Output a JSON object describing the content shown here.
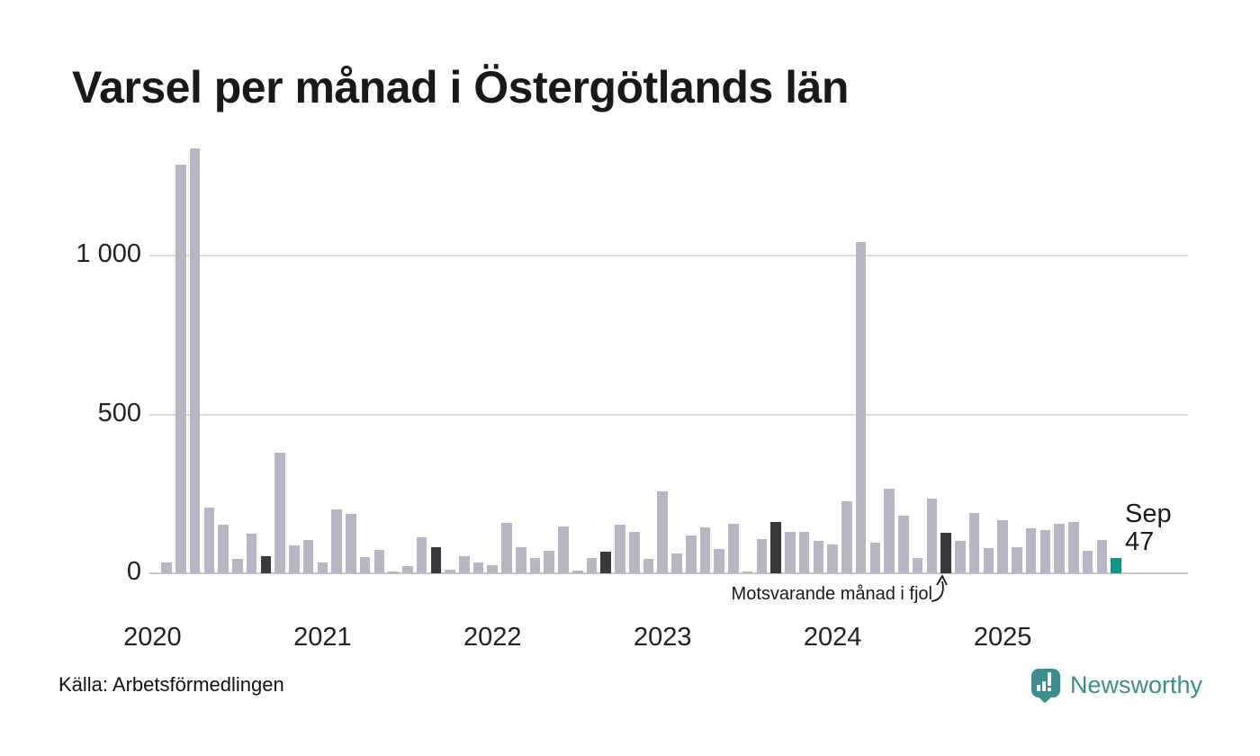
{
  "title": "Varsel per månad i Östergötlands län",
  "source": "Källa: Arbetsförmedlingen",
  "branding": {
    "logo_text": "Newsworthy"
  },
  "annotation": {
    "text": "Motsvarande månad i fjol"
  },
  "current_point_label": {
    "month": "Sep",
    "value": "47"
  },
  "colors": {
    "bar_default": "#b8b6c4",
    "bar_prior_year_month": "#3a383c",
    "bar_current": "#0f948a",
    "brand_teal": "#3c8d8b",
    "gridline": "#dcdce0",
    "axis_line": "#c6c6cc",
    "text": "#1a1a1a"
  },
  "y_axis": {
    "ticks": [
      {
        "value": 0,
        "label": "0"
      },
      {
        "value": 500,
        "label": "500"
      },
      {
        "value": 1000,
        "label": "1 000"
      }
    ]
  },
  "x_axis": {
    "year_labels": [
      "2020",
      "2021",
      "2022",
      "2023",
      "2024",
      "2025"
    ]
  },
  "chart_data": {
    "type": "bar",
    "title": "Varsel per månad i Östergötlands län",
    "xlabel": "",
    "ylabel": "",
    "ylim": [
      0,
      1350
    ],
    "grid": "horizontal",
    "legend": "none",
    "annotation_target": "2024-09",
    "points": [
      [
        "2020-02",
        34,
        "default"
      ],
      [
        "2020-03",
        1285,
        "default"
      ],
      [
        "2020-04",
        1334,
        "default"
      ],
      [
        "2020-05",
        207,
        "default"
      ],
      [
        "2020-06",
        153,
        "default"
      ],
      [
        "2020-07",
        46,
        "default"
      ],
      [
        "2020-08",
        125,
        "default"
      ],
      [
        "2020-09",
        55,
        "prior-year-month"
      ],
      [
        "2020-10",
        380,
        "default"
      ],
      [
        "2020-11",
        89,
        "default"
      ],
      [
        "2020-12",
        105,
        "default"
      ],
      [
        "2021-01",
        33,
        "default"
      ],
      [
        "2021-02",
        200,
        "default"
      ],
      [
        "2021-03",
        188,
        "default"
      ],
      [
        "2021-04",
        52,
        "default"
      ],
      [
        "2021-05",
        74,
        "default"
      ],
      [
        "2021-06",
        7,
        "default"
      ],
      [
        "2021-07",
        23,
        "default"
      ],
      [
        "2021-08",
        112,
        "default"
      ],
      [
        "2021-09",
        82,
        "prior-year-month"
      ],
      [
        "2021-10",
        11,
        "default"
      ],
      [
        "2021-11",
        54,
        "default"
      ],
      [
        "2021-12",
        33,
        "default"
      ],
      [
        "2022-01",
        25,
        "default"
      ],
      [
        "2022-02",
        157,
        "default"
      ],
      [
        "2022-03",
        82,
        "default"
      ],
      [
        "2022-04",
        48,
        "default"
      ],
      [
        "2022-05",
        71,
        "default"
      ],
      [
        "2022-06",
        148,
        "default"
      ],
      [
        "2022-07",
        9,
        "default"
      ],
      [
        "2022-08",
        49,
        "default"
      ],
      [
        "2022-09",
        68,
        "prior-year-month"
      ],
      [
        "2022-10",
        153,
        "default"
      ],
      [
        "2022-11",
        129,
        "default"
      ],
      [
        "2022-12",
        44,
        "default"
      ],
      [
        "2023-01",
        258,
        "default"
      ],
      [
        "2023-02",
        63,
        "default"
      ],
      [
        "2023-03",
        119,
        "default"
      ],
      [
        "2023-04",
        143,
        "default"
      ],
      [
        "2023-05",
        77,
        "default"
      ],
      [
        "2023-06",
        156,
        "default"
      ],
      [
        "2023-07",
        7,
        "default"
      ],
      [
        "2023-08",
        108,
        "default"
      ],
      [
        "2023-09",
        160,
        "prior-year-month"
      ],
      [
        "2023-10",
        129,
        "default"
      ],
      [
        "2023-11",
        129,
        "default"
      ],
      [
        "2023-12",
        101,
        "default"
      ],
      [
        "2024-01",
        91,
        "default"
      ],
      [
        "2024-02",
        226,
        "default"
      ],
      [
        "2024-03",
        1040,
        "default"
      ],
      [
        "2024-04",
        96,
        "default"
      ],
      [
        "2024-05",
        266,
        "default"
      ],
      [
        "2024-06",
        181,
        "default"
      ],
      [
        "2024-07",
        49,
        "default"
      ],
      [
        "2024-08",
        235,
        "default"
      ],
      [
        "2024-09",
        126,
        "prior-year-month"
      ],
      [
        "2024-10",
        103,
        "default"
      ],
      [
        "2024-11",
        190,
        "default"
      ],
      [
        "2024-12",
        79,
        "default"
      ],
      [
        "2025-01",
        167,
        "default"
      ],
      [
        "2025-02",
        82,
        "default"
      ],
      [
        "2025-03",
        141,
        "default"
      ],
      [
        "2025-04",
        136,
        "default"
      ],
      [
        "2025-05",
        155,
        "default"
      ],
      [
        "2025-06",
        162,
        "default"
      ],
      [
        "2025-07",
        72,
        "default"
      ],
      [
        "2025-08",
        104,
        "default"
      ],
      [
        "2025-09",
        47,
        "current"
      ]
    ]
  }
}
